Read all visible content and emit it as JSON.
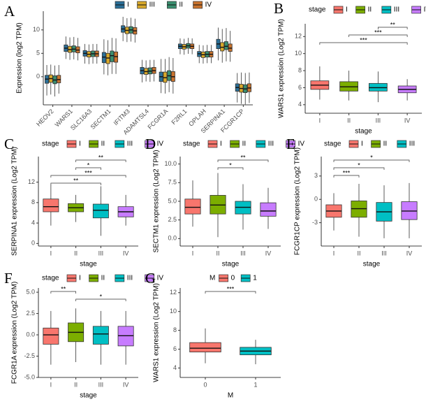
{
  "chart_data": [
    {
      "type": "box",
      "panel": "A",
      "y_label": "Expression (log2 TPM)",
      "categories": [
        "HEOV2",
        "WARS1",
        "SLC16A3",
        "SECTM1",
        "IFITM3",
        "ADAMTSL4",
        "FCGR1A",
        "F2RL1",
        "OPLAH",
        "SERPINA1",
        "FCGR1CP"
      ],
      "ylim": [
        -6,
        14
      ],
      "yticks": [
        0,
        5,
        10
      ],
      "series": [
        {
          "name": "I",
          "color": "#2a6f97",
          "median": [
            -0.5,
            6.1,
            5.0,
            4.2,
            10.2,
            1.3,
            0.0,
            6.5,
            4.9,
            7.0,
            -2.3
          ],
          "q1": [
            -1.4,
            5.4,
            4.4,
            3.0,
            9.5,
            0.6,
            -1.0,
            6.0,
            4.3,
            6.0,
            -3.1
          ],
          "q3": [
            0.3,
            6.8,
            5.6,
            5.2,
            10.9,
            2.0,
            1.0,
            7.0,
            5.4,
            8.0,
            -1.5
          ],
          "whisker_low": [
            -4.0,
            3.8,
            2.8,
            0.5,
            7.6,
            -1.2,
            -3.5,
            4.8,
            2.9,
            3.5,
            -5.5
          ],
          "whisker_high": [
            2.5,
            8.6,
            7.0,
            8.0,
            12.8,
            3.6,
            3.8,
            8.2,
            6.8,
            10.5,
            0.8
          ]
        },
        {
          "name": "III",
          "color": "#d9a92a",
          "median": [
            -0.4,
            5.8,
            4.8,
            4.0,
            9.9,
            1.1,
            -0.2,
            6.4,
            4.7,
            6.3,
            -2.5
          ],
          "q1": [
            -1.2,
            5.2,
            4.2,
            2.8,
            9.2,
            0.5,
            -1.2,
            5.9,
            4.1,
            5.5,
            -3.3
          ],
          "q3": [
            0.4,
            6.5,
            5.4,
            5.0,
            10.6,
            1.8,
            1.0,
            6.9,
            5.3,
            7.3,
            -1.6
          ],
          "whisker_low": [
            -3.8,
            3.6,
            2.7,
            0.3,
            7.4,
            -1.0,
            -3.6,
            4.7,
            2.8,
            3.0,
            -5.8
          ],
          "whisker_high": [
            2.6,
            8.4,
            6.9,
            7.8,
            12.5,
            3.5,
            3.8,
            8.1,
            6.7,
            10.2,
            0.9
          ]
        },
        {
          "name": "II",
          "color": "#3a8f6f",
          "median": [
            -0.7,
            5.9,
            4.9,
            4.5,
            10.0,
            1.2,
            0.2,
            6.6,
            4.8,
            6.5,
            -2.6
          ],
          "q1": [
            -1.5,
            5.3,
            4.3,
            3.2,
            9.3,
            0.6,
            -0.8,
            6.1,
            4.2,
            5.8,
            -3.4
          ],
          "q3": [
            0.2,
            6.6,
            5.5,
            5.5,
            10.7,
            1.9,
            1.3,
            7.1,
            5.4,
            7.5,
            -1.7
          ],
          "whisker_low": [
            -4.2,
            3.7,
            2.8,
            0.6,
            7.5,
            -1.1,
            -3.3,
            4.9,
            2.9,
            3.3,
            -5.9
          ],
          "whisker_high": [
            2.4,
            8.5,
            7.0,
            8.3,
            12.6,
            3.6,
            4.2,
            8.3,
            6.8,
            10.4,
            0.8
          ]
        },
        {
          "name": "IV",
          "color": "#c8732e",
          "median": [
            -0.6,
            5.7,
            4.9,
            4.3,
            9.8,
            1.3,
            0.0,
            6.5,
            4.8,
            6.1,
            -2.4
          ],
          "q1": [
            -1.3,
            5.1,
            4.3,
            3.1,
            9.1,
            0.7,
            -1.0,
            6.0,
            4.2,
            5.4,
            -3.2
          ],
          "q3": [
            0.3,
            6.4,
            5.5,
            5.3,
            10.5,
            2.0,
            1.1,
            7.0,
            5.4,
            7.0,
            -1.5
          ],
          "whisker_low": [
            -3.6,
            3.5,
            2.8,
            0.6,
            7.3,
            -1.0,
            -3.6,
            4.8,
            2.9,
            3.2,
            -5.6
          ],
          "whisker_high": [
            2.5,
            8.3,
            7.0,
            8.2,
            12.4,
            3.6,
            4.0,
            8.2,
            6.8,
            9.8,
            0.9
          ]
        }
      ]
    },
    {
      "type": "box",
      "panel": "B",
      "legend_title": "stage",
      "x_label": "stage",
      "y_label": "WARS1  expression (Log2 TPM)",
      "categories": [
        "I",
        "II",
        "III",
        "IV"
      ],
      "colors": [
        "#F8766D",
        "#7CAE00",
        "#00BFC4",
        "#C77CFF"
      ],
      "ylim": [
        3,
        13.5
      ],
      "yticks": [
        4,
        6,
        8,
        10,
        12
      ],
      "median": [
        6.3,
        6.1,
        6.0,
        5.8
      ],
      "q1": [
        5.8,
        5.6,
        5.6,
        5.4
      ],
      "q3": [
        6.8,
        6.7,
        6.5,
        6.2
      ],
      "whisker_low": [
        4.6,
        4.5,
        4.3,
        4.5
      ],
      "whisker_high": [
        8.5,
        8.0,
        7.9,
        7.0
      ],
      "comparisons": [
        {
          "groups": [
            "III",
            "IV"
          ],
          "label": "**"
        },
        {
          "groups": [
            "II",
            "IV"
          ],
          "label": "***"
        },
        {
          "groups": [
            "I",
            "IV"
          ],
          "label": "***"
        }
      ]
    },
    {
      "type": "box",
      "panel": "C",
      "legend_title": "stage",
      "x_label": "stage",
      "y_label": "SERPINA1  expression (Log2 TPM)",
      "categories": [
        "I",
        "II",
        "III",
        "IV"
      ],
      "colors": [
        "#F8766D",
        "#7CAE00",
        "#00BFC4",
        "#C77CFF"
      ],
      "ylim": [
        -0.5,
        17
      ],
      "yticks": [
        0,
        4,
        8,
        12
      ],
      "median": [
        7.2,
        7.0,
        6.5,
        6.2
      ],
      "q1": [
        6.2,
        6.2,
        5.0,
        5.2
      ],
      "q3": [
        8.7,
        7.8,
        7.7,
        7.2
      ],
      "whisker_low": [
        3.5,
        4.2,
        1.5,
        3.5
      ],
      "whisker_high": [
        11.5,
        9.5,
        11.2,
        9.5
      ],
      "comparisons": [
        {
          "groups": [
            "II",
            "IV"
          ],
          "label": "**"
        },
        {
          "groups": [
            "II",
            "III"
          ],
          "label": "*"
        },
        {
          "groups": [
            "I",
            "IV"
          ],
          "label": "***"
        },
        {
          "groups": [
            "I",
            "III"
          ],
          "label": "**"
        }
      ]
    },
    {
      "type": "box",
      "panel": "D",
      "legend_title": "stage",
      "x_label": "stage",
      "y_label": "SECTM1  expression (Log2 TPM)",
      "categories": [
        "I",
        "II",
        "III",
        "IV"
      ],
      "colors": [
        "#F8766D",
        "#7CAE00",
        "#00BFC4",
        "#C77CFF"
      ],
      "ylim": [
        -1,
        11
      ],
      "yticks": [
        {
          "value": 0,
          "label": "0.0"
        },
        {
          "value": 2.5,
          "label": "2.5"
        },
        {
          "value": 5,
          "label": "5.0"
        },
        {
          "value": 7.5,
          "label": "7.5"
        },
        {
          "value": 10,
          "label": "10.0"
        }
      ],
      "median": [
        4.2,
        4.5,
        4.2,
        3.7
      ],
      "q1": [
        3.3,
        3.3,
        3.3,
        3.0
      ],
      "q3": [
        5.3,
        5.8,
        5.0,
        4.8
      ],
      "whisker_low": [
        1.6,
        0.2,
        1.2,
        1.3
      ],
      "whisker_high": [
        7.8,
        8.8,
        7.3,
        6.8
      ],
      "comparisons": [
        {
          "groups": [
            "II",
            "IV"
          ],
          "label": "**"
        },
        {
          "groups": [
            "II",
            "III"
          ],
          "label": "*"
        }
      ]
    },
    {
      "type": "box",
      "panel": "E",
      "legend_title": "stage",
      "x_label": "stage",
      "y_label": "FCGR1CP  expression (Log2 TPM)",
      "categories": [
        "I",
        "II",
        "III",
        "IV"
      ],
      "colors": [
        "#F8766D",
        "#7CAE00",
        "#00BFC4",
        "#C77CFF"
      ],
      "ylim": [
        -6,
        5.5
      ],
      "yticks": [
        -3,
        0,
        3
      ],
      "median": [
        -1.5,
        -1.2,
        -1.6,
        -1.5
      ],
      "q1": [
        -2.3,
        -2.3,
        -2.8,
        -2.6
      ],
      "q3": [
        -0.7,
        -0.2,
        -0.4,
        -0.3
      ],
      "whisker_low": [
        -4.0,
        -4.8,
        -5.0,
        -5.0
      ],
      "whisker_high": [
        0.8,
        2.0,
        1.8,
        2.1
      ],
      "comparisons": [
        {
          "groups": [
            "I",
            "IV"
          ],
          "label": "*"
        },
        {
          "groups": [
            "I",
            "III"
          ],
          "label": "*"
        },
        {
          "groups": [
            "I",
            "II"
          ],
          "label": "***"
        }
      ]
    },
    {
      "type": "box",
      "panel": "F",
      "legend_title": "stage",
      "x_label": "stage",
      "y_label": "FCGR1A  expression (Log2 TPM)",
      "categories": [
        "I",
        "II",
        "III",
        "IV"
      ],
      "colors": [
        "#F8766D",
        "#7CAE00",
        "#00BFC4",
        "#C77CFF"
      ],
      "ylim": [
        -5,
        5.5
      ],
      "yticks": [
        {
          "value": -5,
          "label": "-5.0"
        },
        {
          "value": -2.5,
          "label": "-2.5"
        },
        {
          "value": 0,
          "label": "0.0"
        },
        {
          "value": 2.5,
          "label": "2.5"
        },
        {
          "value": 5,
          "label": "5.0"
        }
      ],
      "median": [
        0.0,
        0.3,
        0.1,
        -0.1
      ],
      "q1": [
        -1.1,
        -0.8,
        -1.1,
        -1.3
      ],
      "q3": [
        0.8,
        1.4,
        1.0,
        1.0
      ],
      "whisker_low": [
        -3.5,
        -3.2,
        -3.5,
        -3.5
      ],
      "whisker_high": [
        2.8,
        3.1,
        2.8,
        2.8
      ],
      "comparisons": [
        {
          "groups": [
            "I",
            "II"
          ],
          "label": "**"
        },
        {
          "groups": [
            "II",
            "IV"
          ],
          "label": "*"
        }
      ]
    },
    {
      "type": "box",
      "panel": "G",
      "legend_title": "M",
      "x_label": "M",
      "y_label": "WARS1  expression (Log2 TPM)",
      "categories": [
        "0",
        "1"
      ],
      "colors": [
        "#F8766D",
        "#00BFC4"
      ],
      "ylim": [
        3,
        12.5
      ],
      "yticks": [
        4,
        6,
        8,
        10,
        12
      ],
      "median": [
        6.1,
        5.8
      ],
      "q1": [
        5.7,
        5.4
      ],
      "q3": [
        6.7,
        6.2
      ],
      "whisker_low": [
        4.5,
        4.4
      ],
      "whisker_high": [
        8.2,
        7.0
      ],
      "comparisons": [
        {
          "groups": [
            "0",
            "1"
          ],
          "label": "***"
        }
      ]
    }
  ]
}
